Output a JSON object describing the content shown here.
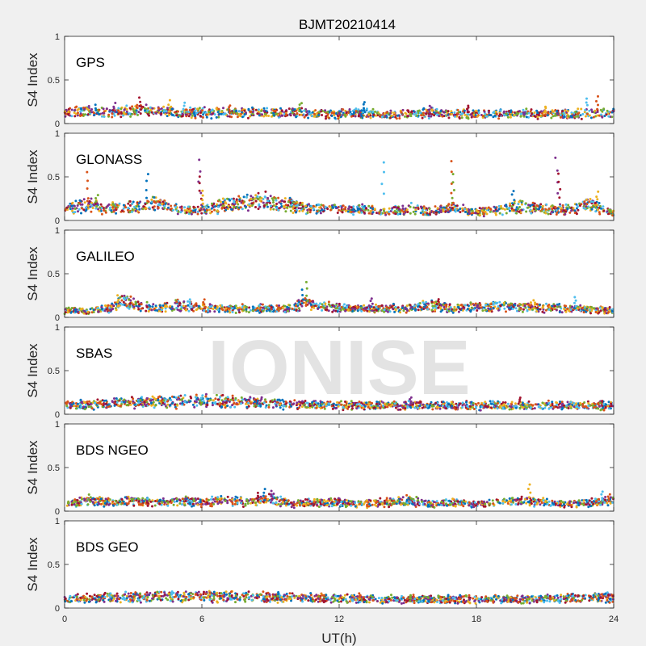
{
  "chart_data": {
    "type": "scatter",
    "title": "BJMT20210414",
    "xlabel": "UT(h)",
    "ylabel": "S4 Index",
    "xlim": [
      0,
      24
    ],
    "ylim": [
      0,
      1
    ],
    "xticks": [
      0,
      6,
      12,
      18,
      24
    ],
    "xtick_labels": [
      "0",
      "6",
      "12",
      "18",
      "24"
    ],
    "yticks": [
      0,
      0.5,
      1
    ],
    "ytick_labels": [
      "0",
      "0.5",
      "1"
    ],
    "watermark": "IONISE",
    "series_colors": [
      "#0072BD",
      "#D95319",
      "#EDB120",
      "#7E2F8E",
      "#77AC30",
      "#4DBEEE",
      "#A2142F"
    ],
    "panels": [
      {
        "label": "GPS",
        "baseline": 0.1,
        "profile": [
          [
            0,
            0.12
          ],
          [
            1,
            0.14
          ],
          [
            2,
            0.12
          ],
          [
            3,
            0.15
          ],
          [
            4,
            0.14
          ],
          [
            5,
            0.12
          ],
          [
            6,
            0.13
          ],
          [
            8,
            0.12
          ],
          [
            10,
            0.12
          ],
          [
            12,
            0.11
          ],
          [
            13,
            0.12
          ],
          [
            14,
            0.1
          ],
          [
            16,
            0.12
          ],
          [
            18,
            0.11
          ],
          [
            20,
            0.11
          ],
          [
            22,
            0.11
          ],
          [
            24,
            0.12
          ]
        ],
        "spikes": [
          [
            1.4,
            0.22
          ],
          [
            2.2,
            0.24
          ],
          [
            3.3,
            0.3
          ],
          [
            4.6,
            0.27
          ],
          [
            5.2,
            0.25
          ],
          [
            7.2,
            0.22
          ],
          [
            10.3,
            0.25
          ],
          [
            13.1,
            0.26
          ],
          [
            16.0,
            0.21
          ],
          [
            17.6,
            0.22
          ],
          [
            21.0,
            0.2
          ],
          [
            22.8,
            0.3
          ],
          [
            23.3,
            0.32
          ]
        ]
      },
      {
        "label": "GLONASS",
        "baseline": 0.12,
        "profile": [
          [
            0,
            0.14
          ],
          [
            1,
            0.18
          ],
          [
            2,
            0.14
          ],
          [
            3,
            0.15
          ],
          [
            4,
            0.2
          ],
          [
            5,
            0.12
          ],
          [
            6,
            0.12
          ],
          [
            7,
            0.17
          ],
          [
            8,
            0.2
          ],
          [
            9,
            0.22
          ],
          [
            10,
            0.16
          ],
          [
            11,
            0.14
          ],
          [
            12,
            0.13
          ],
          [
            13,
            0.12
          ],
          [
            14,
            0.1
          ],
          [
            15,
            0.14
          ],
          [
            16,
            0.1
          ],
          [
            17,
            0.14
          ],
          [
            18,
            0.1
          ],
          [
            19,
            0.12
          ],
          [
            20,
            0.16
          ],
          [
            21,
            0.13
          ],
          [
            22,
            0.12
          ],
          [
            23,
            0.18
          ],
          [
            24,
            0.08
          ]
        ],
        "spikes": [
          [
            1.0,
            0.56
          ],
          [
            1.4,
            0.3
          ],
          [
            3.6,
            0.55
          ],
          [
            5.9,
            0.7
          ],
          [
            5.95,
            0.52
          ],
          [
            6.0,
            0.35
          ],
          [
            13.9,
            0.68
          ],
          [
            16.9,
            0.69
          ],
          [
            17.0,
            0.55
          ],
          [
            19.6,
            0.35
          ],
          [
            21.5,
            0.72
          ],
          [
            21.6,
            0.55
          ],
          [
            23.3,
            0.34
          ]
        ]
      },
      {
        "label": "GALILEO",
        "baseline": 0.08,
        "profile": [
          [
            0,
            0.08
          ],
          [
            1,
            0.07
          ],
          [
            2,
            0.1
          ],
          [
            2.5,
            0.18
          ],
          [
            3,
            0.15
          ],
          [
            4,
            0.1
          ],
          [
            5,
            0.14
          ],
          [
            6,
            0.1
          ],
          [
            8,
            0.1
          ],
          [
            10,
            0.1
          ],
          [
            10.5,
            0.18
          ],
          [
            11,
            0.12
          ],
          [
            13,
            0.1
          ],
          [
            15,
            0.1
          ],
          [
            16,
            0.14
          ],
          [
            17,
            0.1
          ],
          [
            18,
            0.12
          ],
          [
            20,
            0.12
          ],
          [
            22,
            0.1
          ],
          [
            24,
            0.08
          ]
        ],
        "spikes": [
          [
            2.3,
            0.26
          ],
          [
            5.5,
            0.22
          ],
          [
            6.1,
            0.22
          ],
          [
            10.6,
            0.41
          ],
          [
            10.4,
            0.32
          ],
          [
            13.4,
            0.22
          ],
          [
            16.3,
            0.22
          ],
          [
            20.5,
            0.2
          ],
          [
            22.3,
            0.24
          ]
        ]
      },
      {
        "label": "SBAS",
        "baseline": 0.1,
        "profile": [
          [
            0,
            0.1
          ],
          [
            2,
            0.12
          ],
          [
            4,
            0.14
          ],
          [
            6,
            0.15
          ],
          [
            8,
            0.14
          ],
          [
            9,
            0.12
          ],
          [
            10,
            0.11
          ],
          [
            12,
            0.1
          ],
          [
            14,
            0.1
          ],
          [
            16,
            0.1
          ],
          [
            18,
            0.1
          ],
          [
            20,
            0.1
          ],
          [
            22,
            0.1
          ],
          [
            24,
            0.1
          ]
        ],
        "spikes": [
          [
            15.1,
            0.2
          ],
          [
            19.9,
            0.19
          ]
        ]
      },
      {
        "label": "BDS NGEO",
        "baseline": 0.08,
        "profile": [
          [
            0,
            0.08
          ],
          [
            1,
            0.12
          ],
          [
            2,
            0.1
          ],
          [
            3,
            0.12
          ],
          [
            4,
            0.1
          ],
          [
            5,
            0.12
          ],
          [
            6,
            0.1
          ],
          [
            7,
            0.12
          ],
          [
            8,
            0.1
          ],
          [
            9,
            0.14
          ],
          [
            10,
            0.08
          ],
          [
            11,
            0.1
          ],
          [
            12,
            0.1
          ],
          [
            13,
            0.08
          ],
          [
            14,
            0.1
          ],
          [
            15,
            0.12
          ],
          [
            16,
            0.08
          ],
          [
            17,
            0.1
          ],
          [
            18,
            0.08
          ],
          [
            20,
            0.12
          ],
          [
            21,
            0.1
          ],
          [
            22,
            0.08
          ],
          [
            24,
            0.12
          ]
        ],
        "spikes": [
          [
            1.1,
            0.2
          ],
          [
            8.7,
            0.26
          ],
          [
            9.1,
            0.24
          ],
          [
            8.4,
            0.22
          ],
          [
            20.3,
            0.32
          ],
          [
            23.5,
            0.24
          ],
          [
            23.8,
            0.2
          ]
        ]
      },
      {
        "label": "BDS GEO",
        "baseline": 0.1,
        "profile": [
          [
            0,
            0.1
          ],
          [
            2,
            0.12
          ],
          [
            4,
            0.13
          ],
          [
            6,
            0.14
          ],
          [
            8,
            0.13
          ],
          [
            10,
            0.12
          ],
          [
            12,
            0.11
          ],
          [
            14,
            0.1
          ],
          [
            16,
            0.1
          ],
          [
            18,
            0.1
          ],
          [
            20,
            0.1
          ],
          [
            22,
            0.11
          ],
          [
            24,
            0.12
          ]
        ],
        "spikes": [
          [
            4.7,
            0.2
          ],
          [
            12.9,
            0.18
          ],
          [
            15.1,
            0.15
          ]
        ]
      }
    ]
  }
}
